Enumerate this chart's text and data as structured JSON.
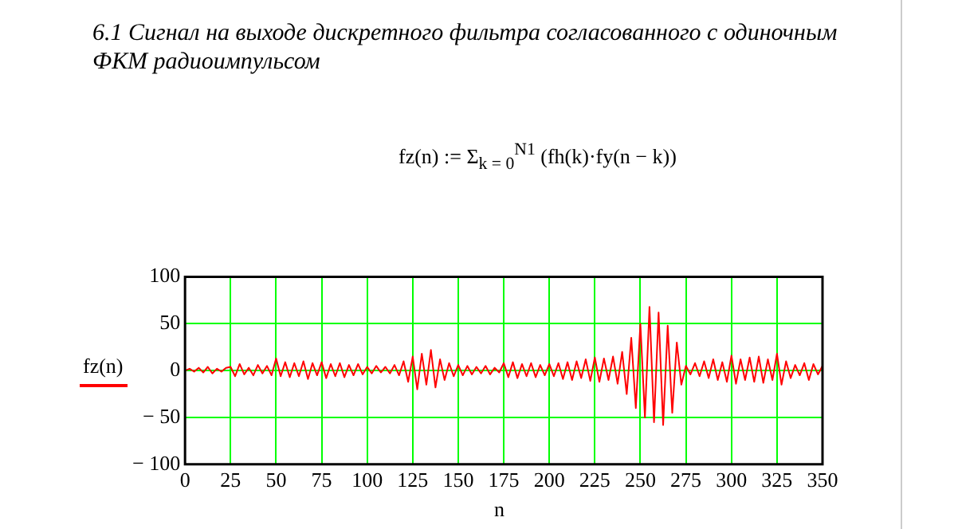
{
  "chart_data": {
    "type": "line",
    "title": "6.1 Сигнал на выходе дискретного фильтра согласованного  с одиночным ФКМ радиоимпульсом",
    "annotations": [
      "fz(n) := Σ$_{k = 0}$$^{N1}$ (fh(k)·fy(n − k))"
    ],
    "xlabel": "n",
    "ylabel": "fz(n)",
    "x": [
      0,
      2.5,
      5,
      7.5,
      10,
      12.5,
      15,
      17.5,
      20,
      22.5,
      25,
      27.5,
      30,
      32.5,
      35,
      37.5,
      40,
      42.5,
      45,
      47.5,
      50,
      52.5,
      55,
      57.5,
      60,
      62.5,
      65,
      67.5,
      70,
      72.5,
      75,
      77.5,
      80,
      82.5,
      85,
      87.5,
      90,
      92.5,
      95,
      97.5,
      100,
      102.5,
      105,
      107.5,
      110,
      112.5,
      115,
      117.5,
      120,
      122.5,
      125,
      127.5,
      130,
      132.5,
      135,
      137.5,
      140,
      142.5,
      145,
      147.5,
      150,
      152.5,
      155,
      157.5,
      160,
      162.5,
      165,
      167.5,
      170,
      172.5,
      175,
      177.5,
      180,
      182.5,
      185,
      187.5,
      190,
      192.5,
      195,
      197.5,
      200,
      202.5,
      205,
      207.5,
      210,
      212.5,
      215,
      217.5,
      220,
      222.5,
      225,
      227.5,
      230,
      232.5,
      235,
      237.5,
      240,
      242.5,
      245,
      247.5,
      250,
      252.5,
      255,
      257.5,
      260,
      262.5,
      265,
      267.5,
      270,
      272.5,
      275,
      277.5,
      280,
      282.5,
      285,
      287.5,
      290,
      292.5,
      295,
      297.5,
      300,
      302.5,
      305,
      307.5,
      310,
      312.5,
      315,
      317.5,
      320,
      322.5,
      325,
      327.5,
      330,
      332.5,
      335,
      337.5,
      340,
      342.5,
      345,
      347.5,
      350
    ],
    "series": [
      {
        "color": "#ff0000",
        "values": [
          0,
          2,
          -1,
          3,
          -2,
          4,
          -3,
          2,
          -1,
          3,
          4,
          -6,
          7,
          -4,
          3,
          -5,
          6,
          -3,
          5,
          -5,
          13,
          -6,
          9,
          -7,
          8,
          -6,
          10,
          -9,
          8,
          -5,
          9,
          -8,
          7,
          -6,
          8,
          -7,
          6,
          -5,
          7,
          -4,
          4,
          -3,
          5,
          -2,
          4,
          -3,
          6,
          -5,
          10,
          -12,
          15,
          -20,
          18,
          -15,
          22,
          -18,
          12,
          -10,
          8,
          -6,
          6,
          -5,
          5,
          -4,
          4,
          -3,
          5,
          -4,
          3,
          -2,
          8,
          -7,
          9,
          -8,
          7,
          -6,
          8,
          -7,
          6,
          -5,
          7,
          -6,
          8,
          -9,
          9,
          -10,
          10,
          -8,
          12,
          -11,
          14,
          -12,
          13,
          -10,
          15,
          -14,
          20,
          -25,
          35,
          -40,
          50,
          -50,
          68,
          -55,
          62,
          -58,
          48,
          -45,
          30,
          -15,
          5,
          -4,
          8,
          -6,
          10,
          -8,
          12,
          -10,
          9,
          -12,
          16,
          -14,
          12,
          -10,
          14,
          -12,
          15,
          -13,
          12,
          -10,
          18,
          -15,
          10,
          -8,
          6,
          -5,
          8,
          -10,
          7,
          -4,
          5
        ]
      }
    ],
    "xlim": [
      0,
      350
    ],
    "xticks": [
      0,
      25,
      50,
      75,
      100,
      125,
      150,
      175,
      200,
      225,
      250,
      275,
      300,
      325,
      350
    ],
    "ylim": [
      -100,
      100
    ],
    "yticks": [
      100,
      50,
      0,
      {
        "value": -50,
        "label": "− 50"
      },
      {
        "value": -100,
        "label": "− 100"
      }
    ],
    "grid": true,
    "marker": "none",
    "line_style": "solid"
  }
}
